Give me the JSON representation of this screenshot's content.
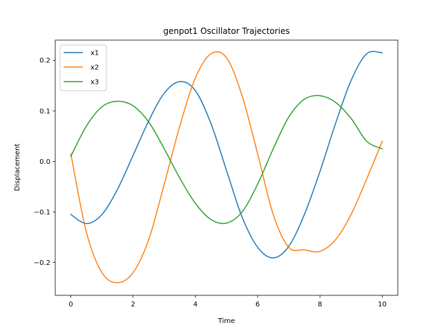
{
  "chart_data": {
    "type": "line",
    "title": "genpot1 Oscillator Trajectories",
    "xlabel": "Time",
    "ylabel": "Displacement",
    "xlim": [
      -0.5,
      10.5
    ],
    "ylim": [
      -0.265,
      0.24
    ],
    "xticks": [
      0,
      2,
      4,
      6,
      8,
      10
    ],
    "xtick_labels": [
      "0",
      "2",
      "4",
      "6",
      "8",
      "10"
    ],
    "yticks": [
      -0.2,
      -0.1,
      0.0,
      0.1,
      0.2
    ],
    "ytick_labels": [
      "−0.2",
      "−0.1",
      "0.0",
      "0.1",
      "0.2"
    ],
    "grid": false,
    "legend_position": "upper-left",
    "x": [
      0,
      0.5,
      1,
      1.5,
      2,
      2.5,
      3,
      3.5,
      4,
      4.5,
      5,
      5.5,
      6,
      6.5,
      7,
      7.5,
      8,
      8.5,
      9,
      9.5,
      10
    ],
    "series": [
      {
        "name": "x1",
        "color": "#1f77b4",
        "values": [
          -0.105,
          -0.123,
          -0.105,
          -0.055,
          0.012,
          0.08,
          0.135,
          0.158,
          0.14,
          0.075,
          -0.018,
          -0.11,
          -0.17,
          -0.191,
          -0.168,
          -0.105,
          -0.02,
          0.075,
          0.16,
          0.213,
          0.215
        ]
      },
      {
        "name": "x2",
        "color": "#ff7f0e",
        "values": [
          0.015,
          -0.14,
          -0.22,
          -0.24,
          -0.22,
          -0.155,
          -0.045,
          0.07,
          0.165,
          0.213,
          0.205,
          0.13,
          0.015,
          -0.105,
          -0.17,
          -0.175,
          -0.178,
          -0.155,
          -0.105,
          -0.035,
          0.04
        ]
      },
      {
        "name": "x3",
        "color": "#2ca02c",
        "values": [
          0.01,
          0.07,
          0.108,
          0.119,
          0.11,
          0.078,
          0.025,
          -0.033,
          -0.083,
          -0.115,
          -0.122,
          -0.1,
          -0.045,
          0.025,
          0.088,
          0.123,
          0.13,
          0.117,
          0.085,
          0.04,
          0.025
        ]
      }
    ]
  }
}
